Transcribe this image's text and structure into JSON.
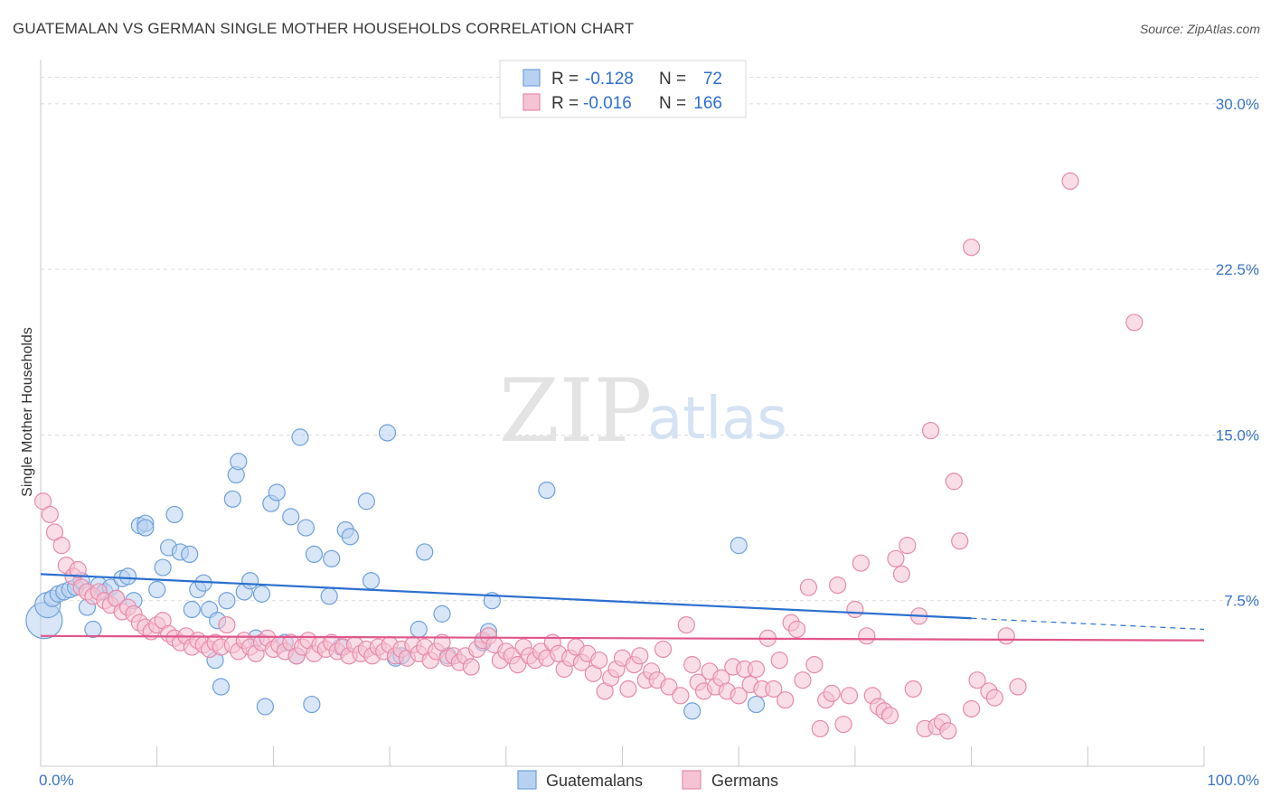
{
  "title": "GUATEMALAN VS GERMAN SINGLE MOTHER HOUSEHOLDS CORRELATION CHART",
  "source": "Source: ZipAtlas.com",
  "watermark": {
    "zip": "ZIP",
    "atlas": "atlas"
  },
  "chart_data": {
    "type": "scatter",
    "title": "GUATEMALAN VS GERMAN SINGLE MOTHER HOUSEHOLDS CORRELATION CHART",
    "ylabel": "Single Mother Households",
    "xlabel": "",
    "xlim": [
      0,
      100
    ],
    "ylim": [
      0,
      32
    ],
    "x_tick_labels": {
      "min": "0.0%",
      "max": "100.0%"
    },
    "y_ticks": [
      {
        "value": 7.5,
        "label": "7.5%"
      },
      {
        "value": 15.0,
        "label": "15.0%"
      },
      {
        "value": 22.5,
        "label": "22.5%"
      },
      {
        "value": 30.0,
        "label": "30.0%"
      }
    ],
    "grid": true,
    "legend_position": "top-center",
    "legend": [
      {
        "r_label": "R =",
        "r_value": "-0.128",
        "n_label": "N =",
        "n_value": "72"
      },
      {
        "r_label": "R =",
        "r_value": "-0.016",
        "n_label": "N =",
        "n_value": "166"
      }
    ],
    "series": [
      {
        "name": "Guatemalans",
        "color": "#6fa0db",
        "fill": "#b8d1f0",
        "trend": {
          "x0": 0,
          "y0": 8.7,
          "x1": 80,
          "y1": 6.7,
          "x_end_dashed": 100,
          "y_end_dashed": 6.2,
          "color": "#2c6fcf"
        },
        "points": [
          [
            0.3,
            6.6,
            3
          ],
          [
            0.6,
            7.3,
            2
          ],
          [
            1.0,
            7.6,
            1
          ],
          [
            1.5,
            7.8,
            1
          ],
          [
            2.0,
            7.9,
            1
          ],
          [
            2.5,
            8.0,
            1
          ],
          [
            3.0,
            8.1,
            1
          ],
          [
            3.5,
            8.4,
            1
          ],
          [
            4.0,
            7.2,
            1
          ],
          [
            4.5,
            6.2,
            1
          ],
          [
            5.0,
            8.2,
            1
          ],
          [
            5.5,
            7.9,
            1
          ],
          [
            6.0,
            8.1,
            1
          ],
          [
            6.5,
            7.6,
            1
          ],
          [
            7.0,
            8.5,
            1
          ],
          [
            7.5,
            8.6,
            1
          ],
          [
            8.0,
            7.5,
            1
          ],
          [
            8.5,
            10.9,
            1
          ],
          [
            9.0,
            11.0,
            1
          ],
          [
            9.0,
            10.8,
            1
          ],
          [
            10.0,
            8.0,
            1
          ],
          [
            10.5,
            9.0,
            1
          ],
          [
            11.0,
            9.9,
            1
          ],
          [
            11.5,
            11.4,
            1
          ],
          [
            12.0,
            9.7,
            1
          ],
          [
            13.0,
            7.1,
            1
          ],
          [
            12.8,
            9.6,
            1
          ],
          [
            13.5,
            8.0,
            1
          ],
          [
            14.0,
            8.3,
            1
          ],
          [
            14.5,
            7.1,
            1
          ],
          [
            15.0,
            4.8,
            1
          ],
          [
            15.2,
            6.6,
            1
          ],
          [
            15.5,
            3.6,
            1
          ],
          [
            16.0,
            7.5,
            1
          ],
          [
            16.5,
            12.1,
            1
          ],
          [
            16.8,
            13.2,
            1
          ],
          [
            17.0,
            13.8,
            1
          ],
          [
            17.5,
            7.9,
            1
          ],
          [
            18.0,
            8.4,
            1
          ],
          [
            18.5,
            5.8,
            1
          ],
          [
            19.0,
            7.8,
            1
          ],
          [
            19.3,
            2.7,
            1
          ],
          [
            19.8,
            11.9,
            1
          ],
          [
            20.3,
            12.4,
            1
          ],
          [
            21.0,
            5.6,
            1
          ],
          [
            21.5,
            11.3,
            1
          ],
          [
            22.0,
            5.0,
            1
          ],
          [
            22.3,
            14.9,
            1
          ],
          [
            22.8,
            10.8,
            1
          ],
          [
            23.3,
            2.8,
            1
          ],
          [
            23.5,
            9.6,
            1
          ],
          [
            24.8,
            7.7,
            1
          ],
          [
            25.0,
            9.4,
            1
          ],
          [
            25.8,
            5.4,
            1
          ],
          [
            26.2,
            10.7,
            1
          ],
          [
            26.6,
            10.4,
            1
          ],
          [
            28.0,
            12.0,
            1
          ],
          [
            28.4,
            8.4,
            1
          ],
          [
            29.8,
            15.1,
            1
          ],
          [
            30.5,
            4.9,
            1
          ],
          [
            31.0,
            5.0,
            1
          ],
          [
            32.5,
            6.2,
            1
          ],
          [
            33.0,
            9.7,
            1
          ],
          [
            34.5,
            6.9,
            1
          ],
          [
            35.0,
            5.0,
            1
          ],
          [
            38.5,
            6.1,
            1
          ],
          [
            38.0,
            5.6,
            1
          ],
          [
            38.8,
            7.5,
            1
          ],
          [
            43.5,
            12.5,
            1
          ],
          [
            56.0,
            2.5,
            1
          ],
          [
            60.0,
            10.0,
            1
          ],
          [
            61.5,
            2.8,
            1
          ]
        ]
      },
      {
        "name": "Germans",
        "color": "#e68aa9",
        "fill": "#f6c3d4",
        "trend": {
          "x0": 0,
          "y0": 5.9,
          "x1": 100,
          "y1": 5.7,
          "color": "#e0568a"
        },
        "points": [
          [
            0.2,
            12.0,
            1
          ],
          [
            0.8,
            11.4,
            1
          ],
          [
            1.2,
            10.6,
            1
          ],
          [
            1.8,
            10.0,
            1
          ],
          [
            2.2,
            9.1,
            1
          ],
          [
            2.8,
            8.6,
            1
          ],
          [
            3.2,
            8.9,
            1
          ],
          [
            3.5,
            8.1,
            1
          ],
          [
            4.0,
            7.9,
            1
          ],
          [
            4.5,
            7.7,
            1
          ],
          [
            5.0,
            7.9,
            1
          ],
          [
            5.5,
            7.5,
            1
          ],
          [
            6.0,
            7.3,
            1
          ],
          [
            6.5,
            7.6,
            1
          ],
          [
            7.0,
            7.0,
            1
          ],
          [
            7.5,
            7.2,
            1
          ],
          [
            8.0,
            6.9,
            1
          ],
          [
            8.5,
            6.5,
            1
          ],
          [
            9.0,
            6.3,
            1
          ],
          [
            9.5,
            6.1,
            1
          ],
          [
            10.0,
            6.4,
            1
          ],
          [
            10.5,
            6.6,
            1
          ],
          [
            11.0,
            6.0,
            1
          ],
          [
            11.5,
            5.8,
            1
          ],
          [
            12.0,
            5.6,
            1
          ],
          [
            12.5,
            5.9,
            1
          ],
          [
            13.0,
            5.4,
            1
          ],
          [
            13.5,
            5.7,
            1
          ],
          [
            14.0,
            5.5,
            1
          ],
          [
            14.5,
            5.3,
            1
          ],
          [
            15.0,
            5.6,
            1
          ],
          [
            15.5,
            5.4,
            1
          ],
          [
            16.0,
            6.4,
            1
          ],
          [
            16.5,
            5.5,
            1
          ],
          [
            17.0,
            5.2,
            1
          ],
          [
            17.5,
            5.7,
            1
          ],
          [
            18.0,
            5.4,
            1
          ],
          [
            18.5,
            5.1,
            1
          ],
          [
            19.0,
            5.6,
            1
          ],
          [
            19.5,
            5.8,
            1
          ],
          [
            20.0,
            5.3,
            1
          ],
          [
            20.5,
            5.5,
            1
          ],
          [
            21.0,
            5.2,
            1
          ],
          [
            21.5,
            5.6,
            1
          ],
          [
            22.0,
            5.0,
            1
          ],
          [
            22.5,
            5.4,
            1
          ],
          [
            23.0,
            5.7,
            1
          ],
          [
            23.5,
            5.1,
            1
          ],
          [
            24.0,
            5.5,
            1
          ],
          [
            24.5,
            5.3,
            1
          ],
          [
            25.0,
            5.6,
            1
          ],
          [
            25.5,
            5.2,
            1
          ],
          [
            26.0,
            5.4,
            1
          ],
          [
            26.5,
            5.0,
            1
          ],
          [
            27.0,
            5.5,
            1
          ],
          [
            27.5,
            5.1,
            1
          ],
          [
            28.0,
            5.3,
            1
          ],
          [
            28.5,
            5.0,
            1
          ],
          [
            29.0,
            5.4,
            1
          ],
          [
            29.5,
            5.2,
            1
          ],
          [
            30.0,
            5.5,
            1
          ],
          [
            30.5,
            5.0,
            1
          ],
          [
            31.0,
            5.3,
            1
          ],
          [
            31.5,
            4.9,
            1
          ],
          [
            32.0,
            5.5,
            1
          ],
          [
            32.5,
            5.1,
            1
          ],
          [
            33.0,
            5.4,
            1
          ],
          [
            33.5,
            4.8,
            1
          ],
          [
            34.0,
            5.2,
            1
          ],
          [
            34.5,
            5.6,
            1
          ],
          [
            35.0,
            4.9,
            1
          ],
          [
            35.5,
            5.0,
            1
          ],
          [
            36.0,
            4.7,
            1
          ],
          [
            36.5,
            5.0,
            1
          ],
          [
            37.0,
            4.5,
            1
          ],
          [
            37.5,
            5.3,
            1
          ],
          [
            38.0,
            5.7,
            1
          ],
          [
            38.5,
            5.9,
            1
          ],
          [
            39.0,
            5.5,
            1
          ],
          [
            39.5,
            4.8,
            1
          ],
          [
            40.0,
            5.2,
            1
          ],
          [
            40.5,
            5.0,
            1
          ],
          [
            41.0,
            4.6,
            1
          ],
          [
            41.5,
            5.4,
            1
          ],
          [
            42.0,
            5.0,
            1
          ],
          [
            42.5,
            4.8,
            1
          ],
          [
            43.0,
            5.2,
            1
          ],
          [
            43.5,
            4.9,
            1
          ],
          [
            44.0,
            5.6,
            1
          ],
          [
            44.5,
            5.1,
            1
          ],
          [
            45.0,
            4.4,
            1
          ],
          [
            45.5,
            4.9,
            1
          ],
          [
            46.0,
            5.4,
            1
          ],
          [
            46.5,
            4.7,
            1
          ],
          [
            47.0,
            5.1,
            1
          ],
          [
            47.5,
            4.2,
            1
          ],
          [
            48.0,
            4.8,
            1
          ],
          [
            48.5,
            3.4,
            1
          ],
          [
            49.0,
            4.0,
            1
          ],
          [
            49.5,
            4.4,
            1
          ],
          [
            50.0,
            4.9,
            1
          ],
          [
            50.5,
            3.5,
            1
          ],
          [
            51.0,
            4.6,
            1
          ],
          [
            51.5,
            5.0,
            1
          ],
          [
            52.0,
            3.9,
            1
          ],
          [
            52.5,
            4.3,
            1
          ],
          [
            53.0,
            3.9,
            1
          ],
          [
            53.5,
            5.3,
            1
          ],
          [
            54.0,
            3.6,
            1
          ],
          [
            55.0,
            3.2,
            1
          ],
          [
            55.5,
            6.4,
            1
          ],
          [
            56.0,
            4.6,
            1
          ],
          [
            56.5,
            3.8,
            1
          ],
          [
            57.0,
            3.4,
            1
          ],
          [
            57.5,
            4.3,
            1
          ],
          [
            58.0,
            3.6,
            1
          ],
          [
            58.5,
            4.0,
            1
          ],
          [
            59.0,
            3.4,
            1
          ],
          [
            59.5,
            4.5,
            1
          ],
          [
            60.0,
            3.2,
            1
          ],
          [
            60.5,
            4.4,
            1
          ],
          [
            61.0,
            3.7,
            1
          ],
          [
            61.5,
            4.4,
            1
          ],
          [
            62.0,
            3.5,
            1
          ],
          [
            62.5,
            5.8,
            1
          ],
          [
            63.0,
            3.5,
            1
          ],
          [
            63.5,
            4.8,
            1
          ],
          [
            64.0,
            3.0,
            1
          ],
          [
            64.5,
            6.5,
            1
          ],
          [
            65.0,
            6.2,
            1
          ],
          [
            65.5,
            3.9,
            1
          ],
          [
            66.0,
            8.1,
            1
          ],
          [
            66.5,
            4.6,
            1
          ],
          [
            67.0,
            1.7,
            1
          ],
          [
            67.5,
            3.0,
            1
          ],
          [
            68.0,
            3.3,
            1
          ],
          [
            68.5,
            8.2,
            1
          ],
          [
            69.0,
            1.9,
            1
          ],
          [
            69.5,
            3.2,
            1
          ],
          [
            70.0,
            7.1,
            1
          ],
          [
            70.5,
            9.2,
            1
          ],
          [
            71.0,
            5.9,
            1
          ],
          [
            71.5,
            3.2,
            1
          ],
          [
            72.0,
            2.7,
            1
          ],
          [
            72.5,
            2.5,
            1
          ],
          [
            73.0,
            2.3,
            1
          ],
          [
            73.5,
            9.4,
            1
          ],
          [
            74.0,
            8.7,
            1
          ],
          [
            74.5,
            10.0,
            1
          ],
          [
            75.0,
            3.5,
            1
          ],
          [
            75.5,
            6.8,
            1
          ],
          [
            76.0,
            1.7,
            1
          ],
          [
            76.5,
            15.2,
            1
          ],
          [
            77.0,
            1.8,
            1
          ],
          [
            77.5,
            2.0,
            1
          ],
          [
            78.0,
            1.6,
            1
          ],
          [
            78.5,
            12.9,
            1
          ],
          [
            79.0,
            10.2,
            1
          ],
          [
            80.0,
            2.6,
            1
          ],
          [
            80.5,
            3.9,
            1
          ],
          [
            81.5,
            3.4,
            1
          ],
          [
            82.0,
            3.1,
            1
          ],
          [
            83.0,
            5.9,
            1
          ],
          [
            84.0,
            3.6,
            1
          ],
          [
            80.0,
            23.5,
            1
          ],
          [
            88.5,
            26.5,
            1
          ],
          [
            94.0,
            20.1,
            1
          ]
        ]
      }
    ]
  }
}
